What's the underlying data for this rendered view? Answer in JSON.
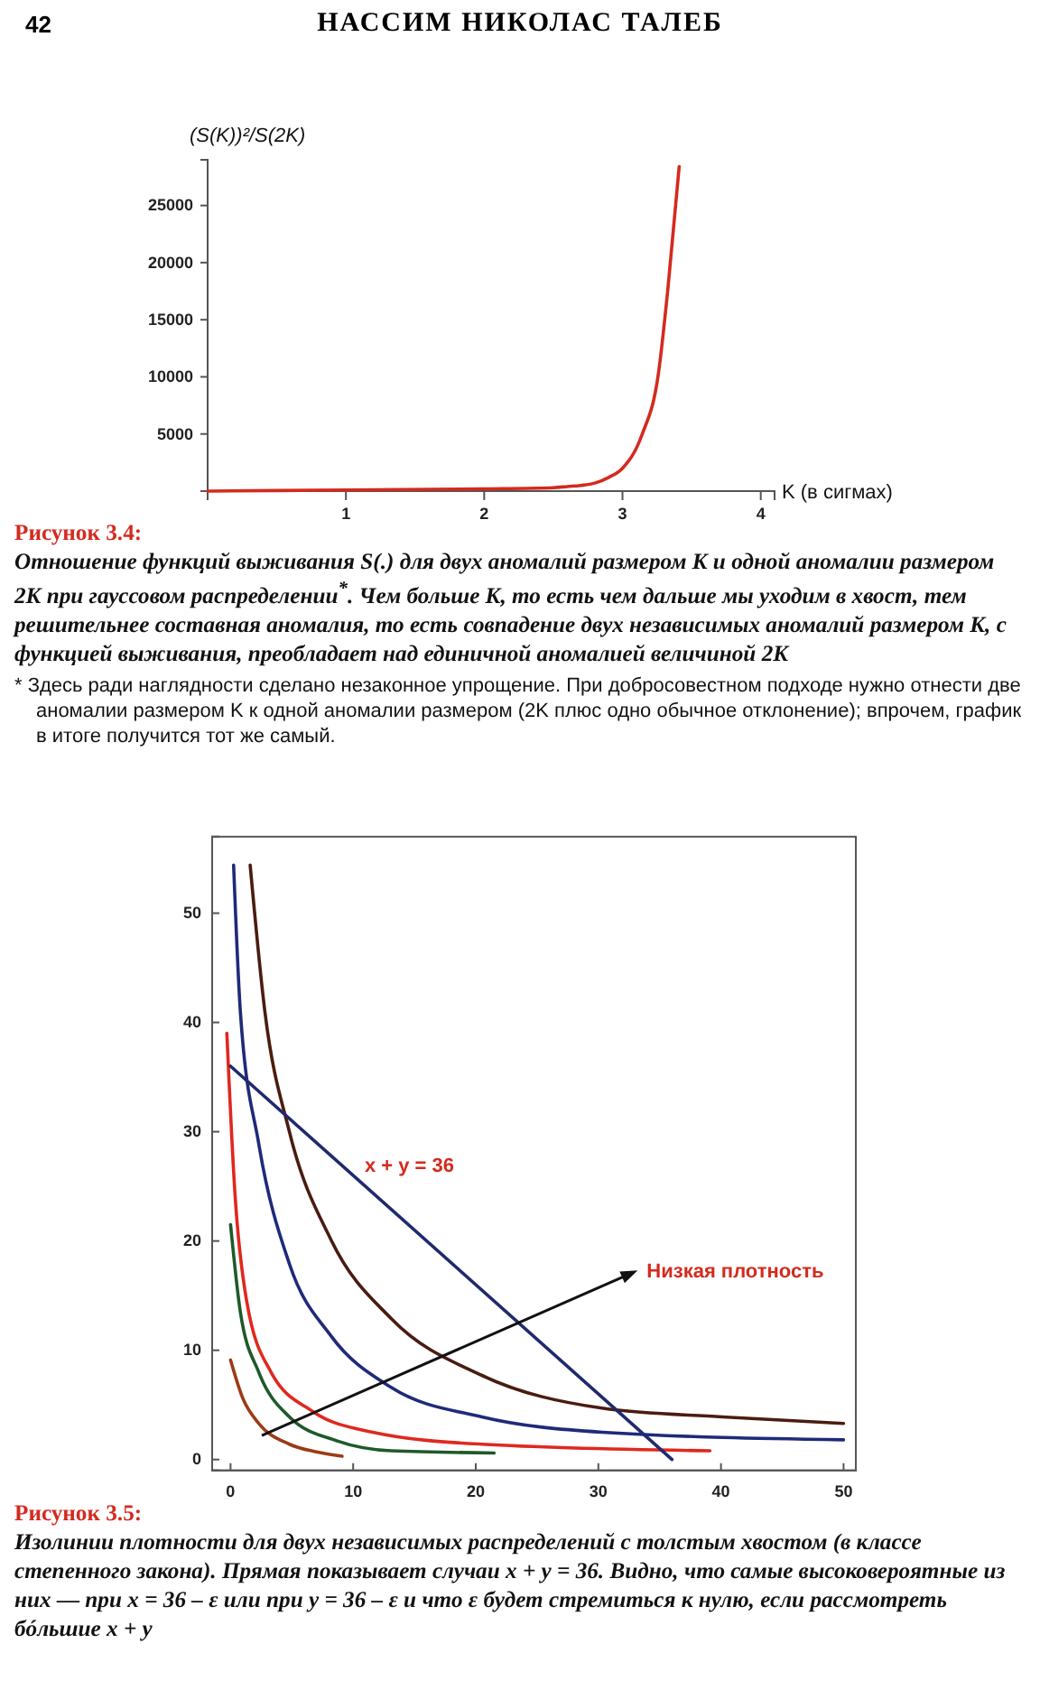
{
  "chart_data": [
    {
      "type": "line",
      "xlabel": "K (в сигмах)",
      "ylabel": "(S(K))²/S(2K)",
      "xlim": [
        0,
        4.1
      ],
      "ylim": [
        0,
        29000
      ],
      "xticks": [
        1,
        2,
        3,
        4
      ],
      "yticks": [
        5000,
        10000,
        15000,
        20000,
        25000
      ],
      "series": [
        {
          "color": "#d42a1e",
          "x": [
            0,
            1,
            2,
            2.5,
            2.6,
            2.7,
            2.8,
            2.9,
            3.0,
            3.14,
            3.26,
            3.33,
            3.41
          ],
          "values": [
            0,
            100,
            200,
            300,
            400,
            500,
            700,
            1200,
            2000,
            4900,
            10300,
            17900,
            28400
          ]
        }
      ],
      "line_style": "solid",
      "grid": false,
      "annotations": [
        "42",
        "НАССИМ НИКОЛАС ТАЛЕБ",
        "Рисунок 3.4:",
        "Отношение функций выживания S(.) для двух аномалий размером K и одной аномалии размером 2K при гауссовом распределении$^{*}$. Чем больше K, то есть чем дальше мы уходим в хвост, тем решительнее составная аномалия, то есть совпадение двух независимых аномалий размером K, с функцией выживания, преобладает над единичной аномалией величиной 2K",
        "* Здесь ради наглядности сделано незаконное упрощение. При добросовестном подходе нужно отнести две аномалии размером K к одной аномалии размером (2K плюс одно обычное отклонение); впрочем, график в итоге получится тот же самый."
      ]
    },
    {
      "type": "line",
      "xlim": [
        -1.5,
        51
      ],
      "ylim": [
        -1,
        57
      ],
      "xticks": [
        0,
        10,
        20,
        30,
        40,
        50
      ],
      "yticks": [
        0,
        10,
        20,
        30,
        40,
        50
      ],
      "series": [
        {
          "color": "#9c3b14",
          "x": [
            0,
            1,
            2.3,
            4.8,
            7,
            9.1
          ],
          "values": [
            9.1,
            5.6,
            3.3,
            1.4,
            0.7,
            0.3
          ]
        },
        {
          "color": "#1e5a2a",
          "x": [
            0,
            0.8,
            2.3,
            4.8,
            8.7,
            13.1,
            21.5
          ],
          "values": [
            21.5,
            13.5,
            8.0,
            3.9,
            1.7,
            0.8,
            0.6
          ]
        },
        {
          "color": "#e0281e",
          "x": [
            -0.3,
            0.35,
            1.3,
            3.3,
            6.7,
            11.6,
            20.5,
            39.1
          ],
          "values": [
            39,
            24.5,
            14.6,
            8.0,
            4.4,
            2.5,
            1.4,
            0.8
          ]
        },
        {
          "color": "#1f2a7a",
          "x": [
            0.25,
            0.8,
            2.3,
            4.8,
            8.2,
            13.1,
            20.5,
            30.3,
            50
          ],
          "values": [
            54.4,
            41,
            28.9,
            17.9,
            11.3,
            6.6,
            3.9,
            2.5,
            1.8
          ]
        },
        {
          "color": "#4a1c10",
          "x": [
            1.6,
            2.8,
            4.8,
            8.2,
            13.1,
            20.5,
            30.3,
            40.1,
            50
          ],
          "values": [
            54.4,
            41,
            30,
            20.1,
            12.9,
            7.7,
            4.7,
            3.9,
            3.3
          ]
        },
        {
          "color": "#1f2a6e",
          "x": [
            0,
            36
          ],
          "values": [
            36,
            0
          ]
        }
      ],
      "line_style": "solid",
      "grid": false,
      "annotations": [
        "x + y = 36",
        "Низкая плотность",
        "Рисунок 3.5:",
        "Изолинии плотности для двух независимых распределений с толстым хвостом (в классе степенного закона). Прямая показывает случаи x + y = 36. Видно, что самые высоковероятные из них — при x = 36 – ε или при y = 36 – ε и что ε будет стремиться к нулю, если рассмотреть бóльшие x + y"
      ]
    }
  ]
}
